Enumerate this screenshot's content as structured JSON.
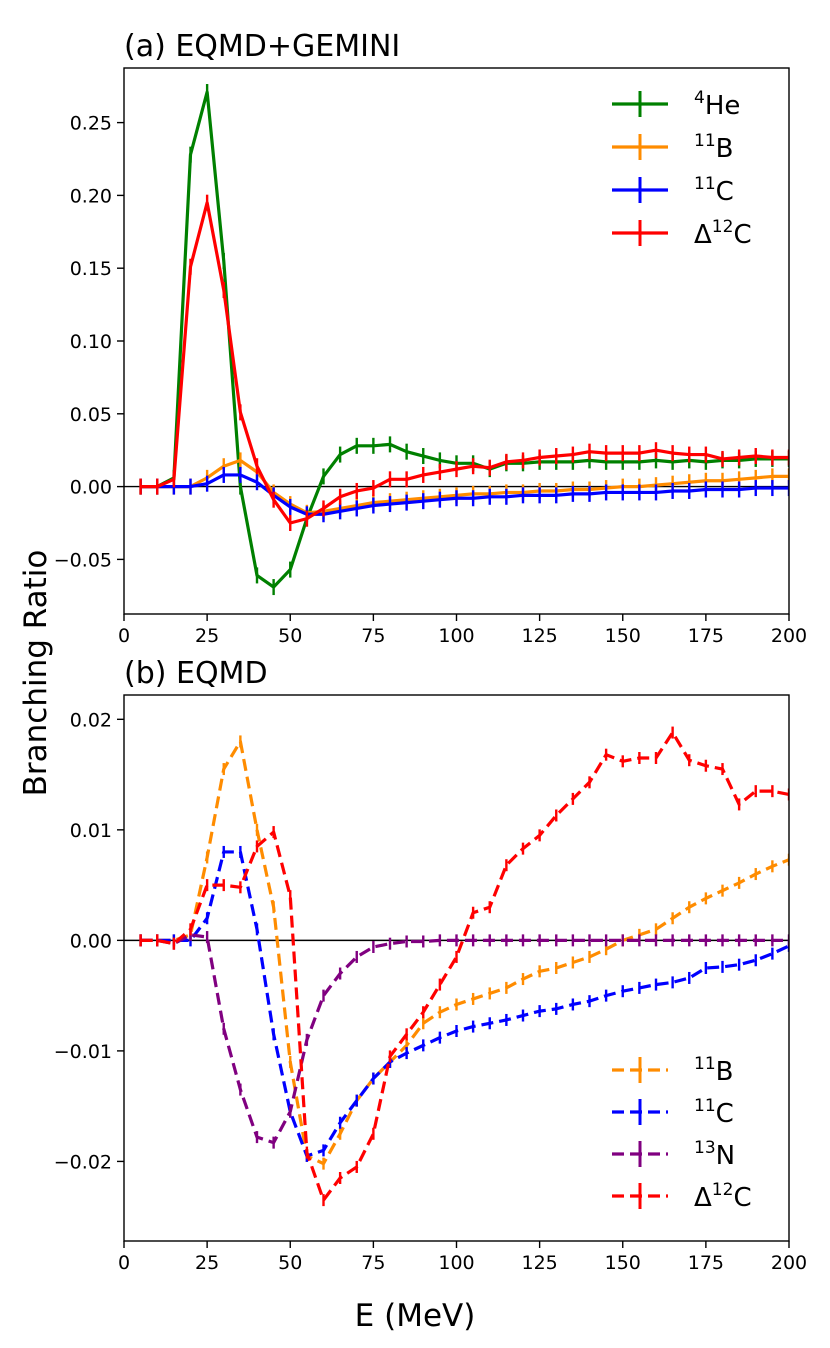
{
  "figure": {
    "ylabel": "Branching Ratio",
    "xlabel": "E (MeV)"
  },
  "chart_data": [
    {
      "type": "line",
      "title": "(a) EQMD+GEMINI",
      "xlabel": "E (MeV)",
      "ylabel": "Branching Ratio",
      "xlim": [
        0,
        200
      ],
      "ylim": [
        -0.0875,
        0.2875
      ],
      "xticks": [
        "0",
        "25",
        "50",
        "75",
        "100",
        "125",
        "150",
        "175",
        "200"
      ],
      "yticks": [
        "−0.05",
        "0.00",
        "0.05",
        "0.10",
        "0.15",
        "0.20",
        "0.25"
      ],
      "ytick_values": [
        -0.05,
        0.0,
        0.05,
        0.1,
        0.15,
        0.2,
        0.25
      ],
      "xtick_values": [
        0,
        25,
        50,
        75,
        100,
        125,
        150,
        175,
        200
      ],
      "legend_position": "top-right",
      "linestyle": "solid",
      "x": [
        5,
        10,
        15,
        20,
        25,
        30,
        35,
        40,
        45,
        50,
        55,
        60,
        65,
        70,
        75,
        80,
        85,
        90,
        95,
        100,
        105,
        110,
        115,
        120,
        125,
        130,
        135,
        140,
        145,
        150,
        155,
        160,
        165,
        170,
        175,
        180,
        185,
        190,
        195,
        200
      ],
      "series": [
        {
          "name": "4He",
          "label_sup": "4",
          "label_base": "He",
          "color": "#008000",
          "values": [
            0,
            0,
            0.006,
            0.228,
            0.271,
            0.155,
            0,
            -0.061,
            -0.069,
            -0.057,
            -0.022,
            0.007,
            0.022,
            0.028,
            0.028,
            0.029,
            0.024,
            0.021,
            0.018,
            0.016,
            0.016,
            0.012,
            0.016,
            0.016,
            0.017,
            0.017,
            0.017,
            0.018,
            0.017,
            0.017,
            0.017,
            0.018,
            0.017,
            0.018,
            0.017,
            0.018,
            0.018,
            0.019,
            0.019,
            0.019
          ]
        },
        {
          "name": "11B",
          "label_sup": "11",
          "label_base": "B",
          "color": "#ff8c00",
          "values": [
            0,
            0,
            0,
            0,
            0.006,
            0.014,
            0.018,
            0.01,
            -0.004,
            -0.012,
            -0.018,
            -0.017,
            -0.015,
            -0.013,
            -0.011,
            -0.01,
            -0.009,
            -0.008,
            -0.007,
            -0.006,
            -0.005,
            -0.005,
            -0.004,
            -0.004,
            -0.003,
            -0.003,
            -0.002,
            -0.002,
            -0.001,
            0,
            0,
            0.001,
            0.002,
            0.003,
            0.004,
            0.004,
            0.005,
            0.006,
            0.007,
            0.007
          ]
        },
        {
          "name": "11C",
          "label_sup": "11",
          "label_base": "C",
          "color": "#0000ff",
          "values": [
            0,
            0,
            0,
            0,
            0.002,
            0.008,
            0.008,
            0.003,
            -0.006,
            -0.014,
            -0.019,
            -0.019,
            -0.017,
            -0.015,
            -0.013,
            -0.012,
            -0.011,
            -0.01,
            -0.009,
            -0.008,
            -0.008,
            -0.007,
            -0.007,
            -0.006,
            -0.006,
            -0.006,
            -0.005,
            -0.005,
            -0.004,
            -0.004,
            -0.004,
            -0.004,
            -0.003,
            -0.003,
            -0.002,
            -0.002,
            -0.002,
            -0.001,
            -0.001,
            -0.001
          ]
        },
        {
          "name": "Δ12C",
          "label_pre": "Δ",
          "label_sup": "12",
          "label_base": "C",
          "color": "#ff0000",
          "values": [
            0,
            0,
            0.005,
            0.151,
            0.195,
            0.135,
            0.051,
            0.014,
            -0.009,
            -0.025,
            -0.022,
            -0.015,
            -0.007,
            -0.003,
            -0.001,
            0.005,
            0.005,
            0.008,
            0.01,
            0.012,
            0.014,
            0.013,
            0.017,
            0.018,
            0.02,
            0.021,
            0.022,
            0.024,
            0.023,
            0.023,
            0.023,
            0.025,
            0.023,
            0.022,
            0.022,
            0.019,
            0.02,
            0.021,
            0.02,
            0.02
          ]
        }
      ]
    },
    {
      "type": "line",
      "title": "(b) EQMD",
      "xlabel": "E (MeV)",
      "ylabel": "Branching Ratio",
      "xlim": [
        0,
        200
      ],
      "ylim": [
        -0.0272,
        0.0222
      ],
      "xticks": [
        "0",
        "25",
        "50",
        "75",
        "100",
        "125",
        "150",
        "175",
        "200"
      ],
      "yticks": [
        "−0.02",
        "−0.01",
        "0.00",
        "0.01",
        "0.02"
      ],
      "ytick_values": [
        -0.02,
        -0.01,
        0.0,
        0.01,
        0.02
      ],
      "xtick_values": [
        0,
        25,
        50,
        75,
        100,
        125,
        150,
        175,
        200
      ],
      "legend_position": "bottom-right",
      "linestyle": "dashed",
      "x": [
        5,
        10,
        15,
        20,
        25,
        30,
        35,
        40,
        45,
        50,
        55,
        60,
        65,
        70,
        75,
        80,
        85,
        90,
        95,
        100,
        105,
        110,
        115,
        120,
        125,
        130,
        135,
        140,
        145,
        150,
        155,
        160,
        165,
        170,
        175,
        180,
        185,
        190,
        195,
        200
      ],
      "series": [
        {
          "name": "11B",
          "label_sup": "11",
          "label_base": "B",
          "color": "#ff8c00",
          "values": [
            0,
            0,
            0,
            0.0005,
            0.0075,
            0.0155,
            0.018,
            0.01,
            0.003,
            -0.011,
            -0.0195,
            -0.0202,
            -0.0175,
            -0.0145,
            -0.0125,
            -0.011,
            -0.0095,
            -0.0075,
            -0.0065,
            -0.0058,
            -0.0053,
            -0.0048,
            -0.0043,
            -0.0035,
            -0.0028,
            -0.0025,
            -0.002,
            -0.0015,
            -0.0008,
            0,
            0.0005,
            0.001,
            0.002,
            0.003,
            0.0038,
            0.0045,
            0.0052,
            0.006,
            0.0067,
            0.0073
          ]
        },
        {
          "name": "11C",
          "label_sup": "11",
          "label_base": "C",
          "color": "#0000ff",
          "values": [
            0,
            0,
            0,
            0,
            0.002,
            0.008,
            0.008,
            0.001,
            -0.0085,
            -0.0155,
            -0.0195,
            -0.019,
            -0.0165,
            -0.0145,
            -0.0125,
            -0.011,
            -0.0102,
            -0.0095,
            -0.0088,
            -0.0082,
            -0.0078,
            -0.0075,
            -0.0072,
            -0.0068,
            -0.0064,
            -0.0062,
            -0.0058,
            -0.0055,
            -0.005,
            -0.0046,
            -0.0043,
            -0.004,
            -0.0038,
            -0.0034,
            -0.0025,
            -0.0024,
            -0.0022,
            -0.0018,
            -0.0012,
            -0.0005
          ]
        },
        {
          "name": "13N",
          "label_sup": "13",
          "label_base": "N",
          "color": "#800080",
          "values": [
            0,
            0,
            -0.0003,
            0.0005,
            0.0003,
            -0.008,
            -0.0135,
            -0.0178,
            -0.0183,
            -0.0155,
            -0.009,
            -0.005,
            -0.003,
            -0.0015,
            -0.0006,
            -0.0003,
            -0.0001,
            -0.0001,
            0,
            0,
            0,
            0,
            0,
            0,
            0,
            0,
            0,
            0,
            0,
            0,
            0,
            0,
            0,
            0,
            0,
            0,
            0,
            0,
            0,
            0
          ]
        },
        {
          "name": "Δ12C",
          "label_pre": "Δ",
          "label_sup": "12",
          "label_base": "C",
          "color": "#ff0000",
          "values": [
            0,
            0,
            -0.0003,
            0.001,
            0.005,
            0.005,
            0.0048,
            0.0085,
            0.0098,
            0.004,
            -0.0192,
            -0.0235,
            -0.0215,
            -0.0205,
            -0.0175,
            -0.0105,
            -0.0085,
            -0.0065,
            -0.004,
            -0.0015,
            0.0025,
            0.003,
            0.0068,
            0.0083,
            0.0095,
            0.0113,
            0.0128,
            0.0143,
            0.0168,
            0.0162,
            0.0165,
            0.0165,
            0.0188,
            0.0163,
            0.0158,
            0.0155,
            0.0123,
            0.0135,
            0.0135,
            0.0132
          ]
        }
      ]
    }
  ]
}
